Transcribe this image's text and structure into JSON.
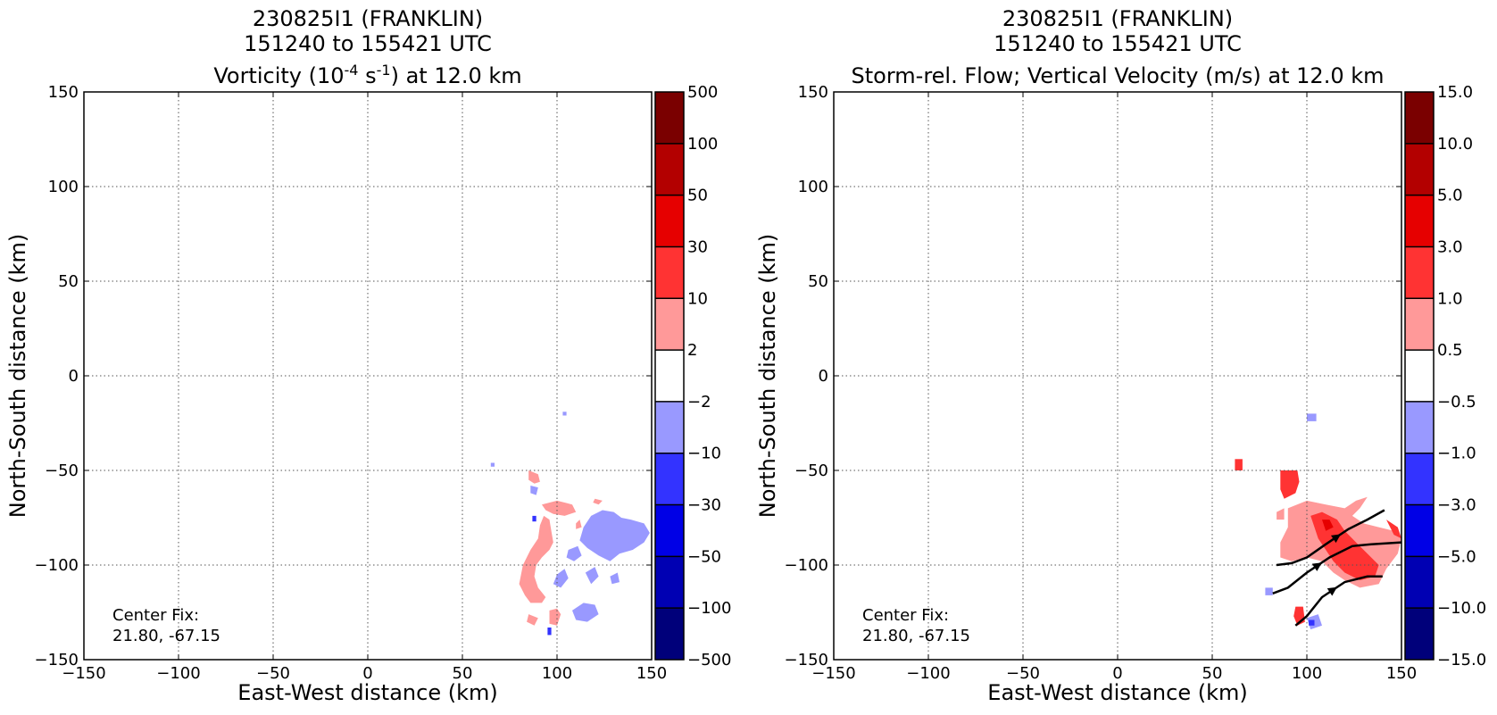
{
  "chart_data": [
    {
      "type": "heatmap",
      "title_lines": [
        "230825I1 (FRANKLIN)",
        "151240 to 155421 UTC"
      ],
      "title_var": {
        "prefix": "Vorticity (10",
        "exp1": "-4",
        "mid": " s",
        "exp2": "-1",
        "suffix": ") at 12.0 km"
      },
      "xlabel": "East-West distance (km)",
      "ylabel": "North-South distance (km)",
      "xlim": [
        -150,
        150
      ],
      "ylim": [
        -150,
        150
      ],
      "xticks": [
        "−150",
        "−100",
        "−50",
        "0",
        "50",
        "100",
        "150"
      ],
      "yticks": [
        "150",
        "100",
        "50",
        "0",
        "−50",
        "−100",
        "−150"
      ],
      "grid": true,
      "annotation": [
        "Center Fix:",
        "21.80, -67.15"
      ],
      "colorbar": {
        "labels": [
          "500",
          "100",
          "50",
          "30",
          "10",
          "2",
          "−2",
          "−10",
          "−30",
          "−50",
          "−100",
          "−500"
        ],
        "colors": [
          "#7a0000",
          "#b30000",
          "#e60000",
          "#ff3333",
          "#ff9999",
          "#ffffff",
          "#9999ff",
          "#3333ff",
          "#0000e6",
          "#0000b3",
          "#00007a"
        ]
      },
      "regions": [
        {
          "color": "#ff9999",
          "points": [
            [
              85,
              -50
            ],
            [
              90,
              -52
            ],
            [
              91,
              -56
            ],
            [
              88,
              -57
            ],
            [
              85,
              -55
            ]
          ]
        },
        {
          "color": "#ff9999",
          "points": [
            [
              92,
              -68
            ],
            [
              100,
              -66
            ],
            [
              108,
              -68
            ],
            [
              110,
              -72
            ],
            [
              104,
              -74
            ],
            [
              98,
              -73
            ],
            [
              94,
              -71
            ]
          ]
        },
        {
          "color": "#ff9999",
          "points": [
            [
              110,
              -78
            ],
            [
              112,
              -76
            ],
            [
              113,
              -80
            ],
            [
              110,
              -81
            ]
          ]
        },
        {
          "color": "#ff9999",
          "points": [
            [
              93,
              -74
            ],
            [
              96,
              -76
            ],
            [
              97,
              -82
            ],
            [
              98,
              -88
            ],
            [
              96,
              -92
            ],
            [
              92,
              -96
            ],
            [
              89,
              -100
            ],
            [
              88,
              -106
            ],
            [
              90,
              -112
            ],
            [
              94,
              -117
            ],
            [
              92,
              -120
            ],
            [
              86,
              -120
            ],
            [
              83,
              -116
            ],
            [
              80,
              -110
            ],
            [
              82,
              -100
            ],
            [
              86,
              -92
            ],
            [
              90,
              -86
            ],
            [
              91,
              -79
            ]
          ]
        },
        {
          "color": "#ff9999",
          "points": [
            [
              96,
              -124
            ],
            [
              100,
              -123
            ],
            [
              102,
              -126
            ],
            [
              100,
              -132
            ],
            [
              96,
              -131
            ]
          ]
        },
        {
          "color": "#ff9999",
          "points": [
            [
              120,
              -65
            ],
            [
              124,
              -66
            ],
            [
              122,
              -68
            ],
            [
              119,
              -67
            ]
          ]
        },
        {
          "color": "#ff9999",
          "points": [
            [
              85,
              -126
            ],
            [
              90,
              -128
            ],
            [
              88,
              -132
            ],
            [
              84,
              -130
            ]
          ]
        },
        {
          "color": "#9999ff",
          "points": [
            [
              118,
              -74
            ],
            [
              124,
              -71
            ],
            [
              130,
              -72
            ],
            [
              134,
              -75
            ],
            [
              139,
              -76
            ],
            [
              146,
              -78
            ],
            [
              149,
              -83
            ],
            [
              146,
              -88
            ],
            [
              140,
              -92
            ],
            [
              133,
              -94
            ],
            [
              128,
              -98
            ],
            [
              122,
              -95
            ],
            [
              116,
              -91
            ],
            [
              112,
              -87
            ],
            [
              114,
              -80
            ]
          ]
        },
        {
          "color": "#9999ff",
          "points": [
            [
              106,
              -92
            ],
            [
              111,
              -90
            ],
            [
              113,
              -95
            ],
            [
              109,
              -98
            ],
            [
              105,
              -96
            ]
          ]
        },
        {
          "color": "#9999ff",
          "points": [
            [
              100,
              -105
            ],
            [
              104,
              -102
            ],
            [
              106,
              -107
            ],
            [
              102,
              -112
            ],
            [
              98,
              -110
            ]
          ]
        },
        {
          "color": "#9999ff",
          "points": [
            [
              115,
              -104
            ],
            [
              120,
              -101
            ],
            [
              122,
              -106
            ],
            [
              118,
              -110
            ]
          ]
        },
        {
          "color": "#9999ff",
          "points": [
            [
              108,
              -124
            ],
            [
              114,
              -120
            ],
            [
              120,
              -121
            ],
            [
              122,
              -126
            ],
            [
              116,
              -130
            ],
            [
              110,
              -129
            ]
          ]
        },
        {
          "color": "#9999ff",
          "points": [
            [
              128,
              -106
            ],
            [
              132,
              -104
            ],
            [
              133,
              -109
            ],
            [
              129,
              -110
            ]
          ]
        },
        {
          "color": "#9999ff",
          "points": [
            [
              86,
              -58
            ],
            [
              90,
              -59
            ],
            [
              89,
              -63
            ],
            [
              86,
              -62
            ]
          ]
        },
        {
          "color": "#9999ff",
          "points": [
            [
              103,
              -19
            ],
            [
              105,
              -19
            ],
            [
              105,
              -21
            ],
            [
              103,
              -21
            ]
          ]
        },
        {
          "color": "#9999ff",
          "points": [
            [
              65,
              -46
            ],
            [
              67,
              -46
            ],
            [
              67,
              -48
            ],
            [
              65,
              -48
            ]
          ]
        },
        {
          "color": "#3333ff",
          "points": [
            [
              95,
              -133
            ],
            [
              97,
              -133
            ],
            [
              97,
              -137
            ],
            [
              95,
              -137
            ]
          ]
        },
        {
          "color": "#3333ff",
          "points": [
            [
              87,
              -74
            ],
            [
              89,
              -74
            ],
            [
              89,
              -77
            ],
            [
              87,
              -77
            ]
          ]
        }
      ],
      "streamlines": []
    },
    {
      "type": "heatmap",
      "title_lines": [
        "230825I1 (FRANKLIN)",
        "151240 to 155421 UTC"
      ],
      "title_var": {
        "prefix": "Storm-rel. Flow; Vertical Velocity (m/s) at 12.0 km",
        "exp1": "",
        "mid": "",
        "exp2": "",
        "suffix": ""
      },
      "xlabel": "East-West distance (km)",
      "ylabel": "North-South distance (km)",
      "xlim": [
        -150,
        150
      ],
      "ylim": [
        -150,
        150
      ],
      "xticks": [
        "−150",
        "−100",
        "−50",
        "0",
        "50",
        "100",
        "150"
      ],
      "yticks": [
        "150",
        "100",
        "50",
        "0",
        "−50",
        "−100",
        "−150"
      ],
      "grid": true,
      "annotation": [
        "Center Fix:",
        "21.80, -67.15"
      ],
      "colorbar": {
        "labels": [
          "15.0",
          "10.0",
          "5.0",
          "3.0",
          "1.0",
          "0.5",
          "−0.5",
          "−1.0",
          "−3.0",
          "−5.0",
          "−10.0",
          "−15.0"
        ],
        "colors": [
          "#7a0000",
          "#b30000",
          "#e60000",
          "#ff3333",
          "#ff9999",
          "#ffffff",
          "#9999ff",
          "#3333ff",
          "#0000e6",
          "#0000b3",
          "#00007a"
        ]
      },
      "regions": [
        {
          "color": "#ff9999",
          "points": [
            [
              90,
              -70
            ],
            [
              100,
              -66
            ],
            [
              110,
              -68
            ],
            [
              120,
              -70
            ],
            [
              126,
              -66
            ],
            [
              132,
              -64
            ],
            [
              128,
              -70
            ],
            [
              124,
              -74
            ],
            [
              130,
              -78
            ],
            [
              138,
              -80
            ],
            [
              146,
              -82
            ],
            [
              150,
              -86
            ],
            [
              148,
              -94
            ],
            [
              142,
              -102
            ],
            [
              138,
              -110
            ],
            [
              128,
              -112
            ],
            [
              120,
              -108
            ],
            [
              114,
              -104
            ],
            [
              108,
              -98
            ],
            [
              100,
              -96
            ],
            [
              92,
              -98
            ],
            [
              86,
              -96
            ],
            [
              86,
              -88
            ],
            [
              90,
              -80
            ]
          ]
        },
        {
          "color": "#ff9999",
          "points": [
            [
              84,
              -72
            ],
            [
              88,
              -70
            ],
            [
              88,
              -76
            ],
            [
              84,
              -76
            ]
          ]
        },
        {
          "color": "#ff3333",
          "points": [
            [
              86,
              -50
            ],
            [
              95,
              -50
            ],
            [
              96,
              -56
            ],
            [
              94,
              -62
            ],
            [
              88,
              -65
            ],
            [
              86,
              -60
            ]
          ]
        },
        {
          "color": "#ff3333",
          "points": [
            [
              62,
              -44
            ],
            [
              66,
              -44
            ],
            [
              66,
              -50
            ],
            [
              62,
              -50
            ]
          ]
        },
        {
          "color": "#ff3333",
          "points": [
            [
              102,
              -74
            ],
            [
              108,
              -72
            ],
            [
              116,
              -76
            ],
            [
              120,
              -82
            ],
            [
              126,
              -88
            ],
            [
              132,
              -94
            ],
            [
              138,
              -100
            ],
            [
              136,
              -106
            ],
            [
              128,
              -108
            ],
            [
              120,
              -104
            ],
            [
              114,
              -98
            ],
            [
              110,
              -92
            ],
            [
              106,
              -86
            ],
            [
              104,
              -80
            ]
          ]
        },
        {
          "color": "#ff3333",
          "points": [
            [
              142,
              -76
            ],
            [
              148,
              -80
            ],
            [
              150,
              -86
            ],
            [
              146,
              -84
            ]
          ]
        },
        {
          "color": "#ff3333",
          "points": [
            [
              94,
              -122
            ],
            [
              98,
              -122
            ],
            [
              99,
              -130
            ],
            [
              95,
              -132
            ],
            [
              93,
              -127
            ]
          ]
        },
        {
          "color": "#e60000",
          "points": [
            [
              108,
              -76
            ],
            [
              112,
              -76
            ],
            [
              114,
              -80
            ],
            [
              110,
              -82
            ]
          ]
        },
        {
          "color": "#9999ff",
          "points": [
            [
              100,
              -128
            ],
            [
              106,
              -126
            ],
            [
              108,
              -132
            ],
            [
              102,
              -134
            ]
          ]
        },
        {
          "color": "#9999ff",
          "points": [
            [
              100,
              -20
            ],
            [
              105,
              -20
            ],
            [
              105,
              -24
            ],
            [
              100,
              -24
            ]
          ]
        },
        {
          "color": "#9999ff",
          "points": [
            [
              78,
              -112
            ],
            [
              82,
              -112
            ],
            [
              82,
              -116
            ],
            [
              78,
              -116
            ]
          ]
        },
        {
          "color": "#3333ff",
          "points": [
            [
              101,
              -129
            ],
            [
              104,
              -129
            ],
            [
              104,
              -132
            ],
            [
              101,
              -132
            ]
          ]
        }
      ],
      "streamlines": [
        {
          "points": [
            [
              84,
              -100
            ],
            [
              92,
              -99
            ],
            [
              100,
              -96
            ],
            [
              110,
              -89
            ],
            [
              122,
              -81
            ],
            [
              132,
              -76
            ],
            [
              141,
              -71
            ]
          ],
          "arrow_at": 3
        },
        {
          "points": [
            [
              82,
              -115
            ],
            [
              90,
              -112
            ],
            [
              100,
              -104
            ],
            [
              112,
              -96
            ],
            [
              124,
              -90
            ],
            [
              134,
              -89
            ],
            [
              150,
              -88
            ]
          ],
          "arrow_at": 2
        },
        {
          "points": [
            [
              94,
              -132
            ],
            [
              100,
              -127
            ],
            [
              108,
              -117
            ],
            [
              120,
              -109
            ],
            [
              132,
              -106
            ],
            [
              140,
              -106
            ]
          ],
          "arrow_at": 2
        }
      ]
    }
  ]
}
